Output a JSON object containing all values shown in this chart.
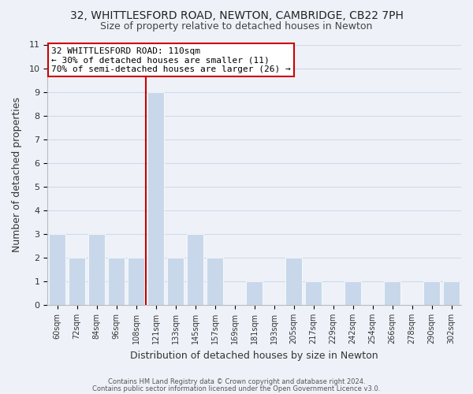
{
  "title": "32, WHITTLESFORD ROAD, NEWTON, CAMBRIDGE, CB22 7PH",
  "subtitle": "Size of property relative to detached houses in Newton",
  "xlabel": "Distribution of detached houses by size in Newton",
  "ylabel": "Number of detached properties",
  "bar_labels": [
    "60sqm",
    "72sqm",
    "84sqm",
    "96sqm",
    "108sqm",
    "121sqm",
    "133sqm",
    "145sqm",
    "157sqm",
    "169sqm",
    "181sqm",
    "193sqm",
    "205sqm",
    "217sqm",
    "229sqm",
    "242sqm",
    "254sqm",
    "266sqm",
    "278sqm",
    "290sqm",
    "302sqm"
  ],
  "bar_heights": [
    3,
    2,
    3,
    2,
    2,
    9,
    2,
    3,
    2,
    0,
    1,
    0,
    2,
    1,
    0,
    1,
    0,
    1,
    0,
    1,
    1
  ],
  "bar_color": "#c8d8ea",
  "bar_edge_color": "#ffffff",
  "grid_color": "#d0daea",
  "background_color": "#eef2f8",
  "vline_x_index": 4,
  "vline_color": "#cc0000",
  "annotation_text": "32 WHITTLESFORD ROAD: 110sqm\n← 30% of detached houses are smaller (11)\n70% of semi-detached houses are larger (26) →",
  "annotation_box_color": "#ffffff",
  "annotation_box_edge": "#cc0000",
  "ylim": [
    0,
    11
  ],
  "yticks": [
    0,
    1,
    2,
    3,
    4,
    5,
    6,
    7,
    8,
    9,
    10,
    11
  ],
  "footer_line1": "Contains HM Land Registry data © Crown copyright and database right 2024.",
  "footer_line2": "Contains public sector information licensed under the Open Government Licence v3.0.",
  "title_fontsize": 10,
  "subtitle_fontsize": 9
}
